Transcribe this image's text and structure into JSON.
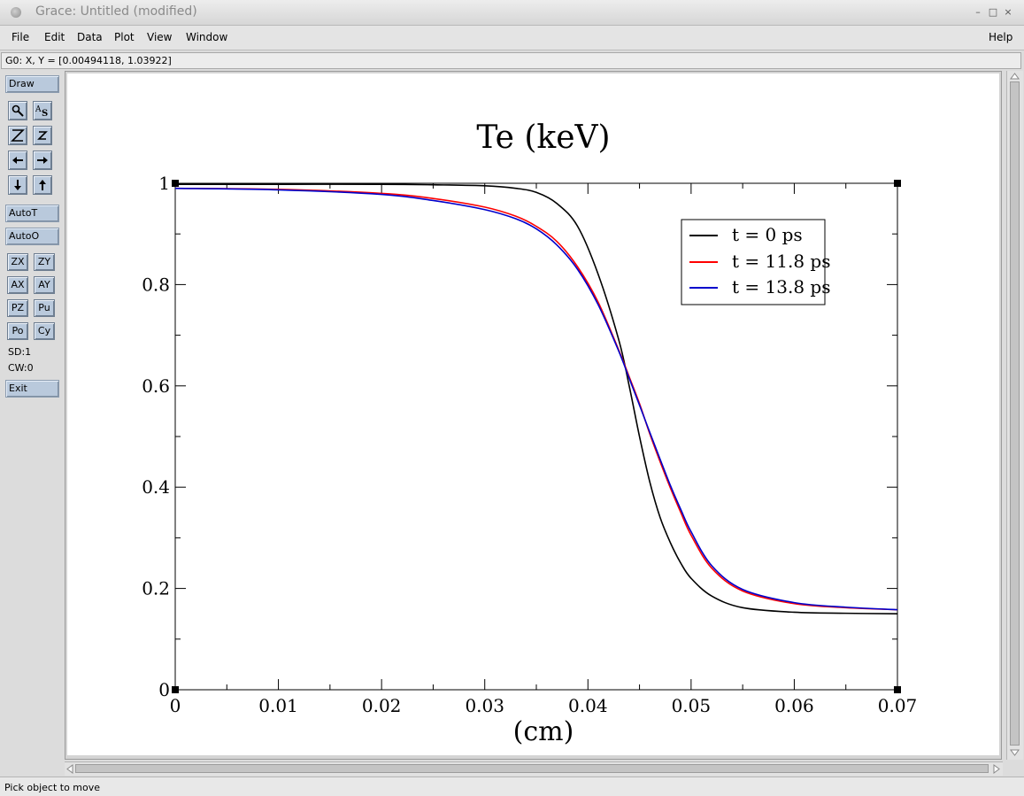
{
  "window": {
    "title": "Grace: Untitled (modified)",
    "controls": {
      "minimize": "–",
      "maximize": "□",
      "close": "×"
    }
  },
  "menubar": {
    "file": "File",
    "edit": "Edit",
    "data": "Data",
    "plot": "Plot",
    "view": "View",
    "window": "Window",
    "help": "Help"
  },
  "locator": "G0: X, Y = [0.00494118, 1.03922]",
  "toolbar": {
    "draw": "Draw",
    "autot": "AutoT",
    "autoo": "AutoO",
    "zx": "ZX",
    "zy": "ZY",
    "ax": "AX",
    "ay": "AY",
    "pz": "PZ",
    "pu": "Pu",
    "po": "Po",
    "cy": "Cy",
    "sd": "SD:1",
    "cw": "CW:0",
    "exit": "Exit"
  },
  "status": "Pick object to move",
  "chart_data": {
    "type": "line",
    "title": "Te (keV)",
    "xlabel": "(cm)",
    "ylabel": "",
    "xlim": [
      0,
      0.07
    ],
    "ylim": [
      0,
      1
    ],
    "xticks": [
      "0",
      "0.01",
      "0.02",
      "0.03",
      "0.04",
      "0.05",
      "0.06",
      "0.07"
    ],
    "yticks": [
      "0",
      "0.2",
      "0.4",
      "0.6",
      "0.8",
      "1"
    ],
    "legend_position": "top-right",
    "colors": {
      "t0": "#000000",
      "t11": "#ff0000",
      "t13": "#0000cc"
    },
    "series": [
      {
        "name": "t = 0 ps",
        "color": "#000000",
        "x": [
          0,
          0.01,
          0.02,
          0.025,
          0.03,
          0.033,
          0.035,
          0.037,
          0.039,
          0.041,
          0.043,
          0.044,
          0.045,
          0.046,
          0.047,
          0.048,
          0.049,
          0.05,
          0.052,
          0.055,
          0.06,
          0.065,
          0.07
        ],
        "y": [
          0.998,
          0.998,
          0.998,
          0.997,
          0.995,
          0.99,
          0.982,
          0.96,
          0.915,
          0.82,
          0.69,
          0.6,
          0.5,
          0.41,
          0.34,
          0.29,
          0.25,
          0.22,
          0.185,
          0.162,
          0.153,
          0.151,
          0.15
        ]
      },
      {
        "name": "t = 11.8 ps",
        "color": "#ff0000",
        "x": [
          0,
          0.01,
          0.02,
          0.025,
          0.03,
          0.033,
          0.035,
          0.037,
          0.039,
          0.041,
          0.043,
          0.044,
          0.045,
          0.046,
          0.047,
          0.048,
          0.049,
          0.05,
          0.052,
          0.055,
          0.06,
          0.065,
          0.07
        ],
        "y": [
          0.99,
          0.988,
          0.98,
          0.97,
          0.953,
          0.935,
          0.915,
          0.885,
          0.835,
          0.765,
          0.67,
          0.618,
          0.565,
          0.505,
          0.45,
          0.398,
          0.35,
          0.305,
          0.24,
          0.195,
          0.17,
          0.162,
          0.158
        ]
      },
      {
        "name": "t = 13.8 ps",
        "color": "#0000cc",
        "x": [
          0,
          0.01,
          0.02,
          0.025,
          0.03,
          0.033,
          0.035,
          0.037,
          0.039,
          0.041,
          0.043,
          0.044,
          0.045,
          0.046,
          0.047,
          0.048,
          0.049,
          0.05,
          0.052,
          0.055,
          0.06,
          0.065,
          0.07
        ],
        "y": [
          0.99,
          0.987,
          0.978,
          0.966,
          0.948,
          0.93,
          0.91,
          0.878,
          0.83,
          0.76,
          0.668,
          0.615,
          0.562,
          0.508,
          0.455,
          0.403,
          0.356,
          0.312,
          0.245,
          0.198,
          0.172,
          0.163,
          0.158
        ]
      }
    ]
  }
}
